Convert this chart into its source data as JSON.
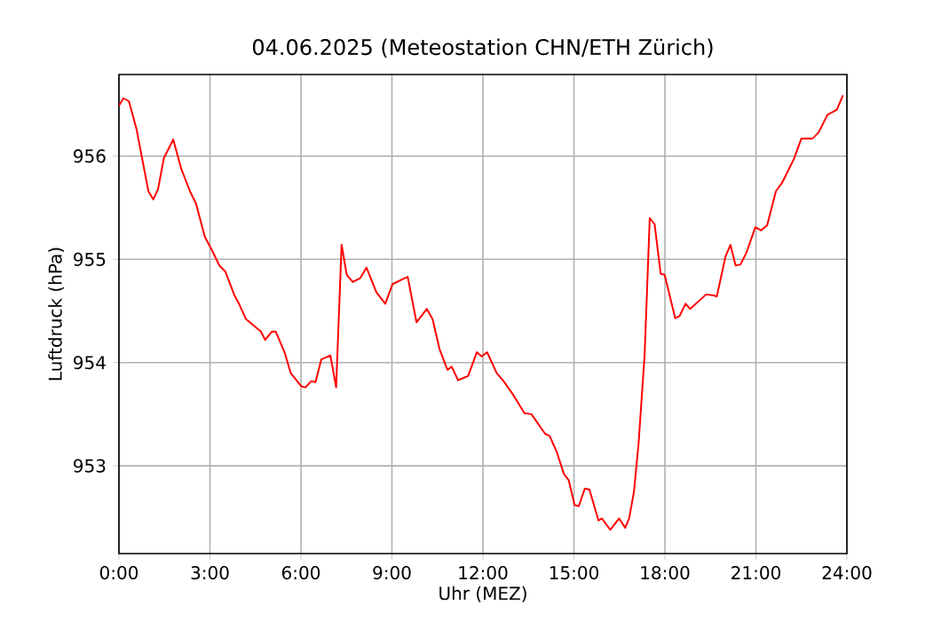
{
  "chart_data": {
    "type": "line",
    "title": "04.06.2025  (Meteostation CHN/ETH Zürich)",
    "xlabel": "Uhr (MEZ)",
    "ylabel": "Luftdruck (hPa)",
    "x": [
      0,
      0.15,
      0.33,
      0.58,
      0.97,
      1.13,
      1.29,
      1.48,
      1.79,
      2.05,
      2.34,
      2.54,
      2.83,
      3.08,
      3.31,
      3.51,
      3.81,
      3.94,
      4.19,
      4.68,
      4.82,
      5.04,
      5.17,
      5.46,
      5.66,
      6.01,
      6.15,
      6.34,
      6.48,
      6.67,
      6.97,
      7.16,
      7.34,
      7.51,
      7.71,
      7.96,
      8.16,
      8.49,
      8.78,
      9.02,
      9.37,
      9.52,
      9.81,
      10.15,
      10.34,
      10.57,
      10.83,
      10.97,
      11.18,
      11.51,
      11.8,
      11.96,
      12.14,
      12.45,
      12.68,
      12.97,
      13.37,
      13.6,
      14.05,
      14.2,
      14.44,
      14.67,
      14.83,
      15.02,
      15.16,
      15.36,
      15.51,
      15.81,
      15.92,
      16.2,
      16.49,
      16.69,
      16.82,
      16.98,
      17.13,
      17.33,
      17.5,
      17.66,
      17.86,
      17.99,
      18.34,
      18.48,
      18.68,
      18.83,
      19.36,
      19.61,
      19.71,
      20.0,
      20.16,
      20.33,
      20.49,
      20.68,
      20.98,
      21.17,
      21.37,
      21.66,
      21.86,
      22.25,
      22.5,
      22.87,
      23.07,
      23.36,
      23.67,
      23.87
    ],
    "series": [
      {
        "color": "#ff0000",
        "values": [
          956.49,
          956.56,
          956.53,
          956.26,
          955.66,
          955.58,
          955.68,
          955.98,
          956.16,
          955.88,
          955.66,
          955.54,
          955.22,
          955.08,
          954.94,
          954.88,
          954.65,
          954.58,
          954.42,
          954.3,
          954.22,
          954.3,
          954.3,
          954.1,
          953.9,
          953.77,
          953.76,
          953.82,
          953.81,
          954.03,
          954.07,
          953.76,
          955.14,
          954.85,
          954.78,
          954.82,
          954.92,
          954.68,
          954.57,
          954.76,
          954.81,
          954.83,
          954.39,
          954.52,
          954.42,
          954.13,
          953.93,
          953.96,
          953.83,
          953.87,
          954.1,
          954.06,
          954.1,
          953.9,
          953.82,
          953.7,
          953.51,
          953.5,
          953.31,
          953.29,
          953.13,
          952.92,
          952.86,
          952.62,
          952.61,
          952.78,
          952.77,
          952.47,
          952.49,
          952.38,
          952.49,
          952.4,
          952.49,
          952.75,
          953.21,
          954.07,
          955.4,
          955.34,
          954.86,
          954.85,
          954.43,
          954.45,
          954.57,
          954.52,
          954.66,
          954.65,
          954.64,
          955.03,
          955.14,
          954.94,
          954.95,
          955.06,
          955.31,
          955.28,
          955.33,
          955.66,
          955.74,
          955.97,
          956.17,
          956.17,
          956.23,
          956.4,
          956.45,
          956.59
        ]
      }
    ],
    "xlim": [
      0,
      24
    ],
    "ylim": [
      952.15,
      956.79
    ],
    "xticks": [
      {
        "value": 0,
        "label": "0:00"
      },
      {
        "value": 3,
        "label": "3:00"
      },
      {
        "value": 6,
        "label": "6:00"
      },
      {
        "value": 9,
        "label": "9:00"
      },
      {
        "value": 12,
        "label": "12:00"
      },
      {
        "value": 15,
        "label": "15:00"
      },
      {
        "value": 18,
        "label": "18:00"
      },
      {
        "value": 21,
        "label": "21:00"
      },
      {
        "value": 24,
        "label": "24:00"
      }
    ],
    "yticks": [
      953,
      954,
      955,
      956
    ],
    "grid": true
  }
}
